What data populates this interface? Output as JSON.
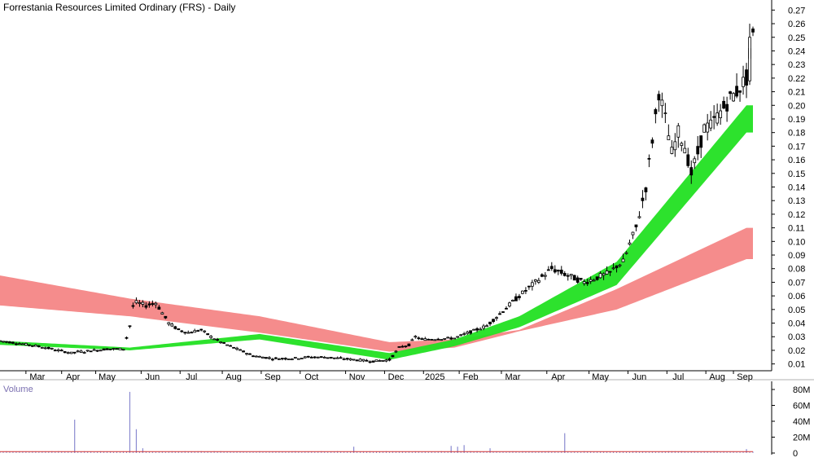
{
  "chart_data": [
    {
      "type": "candlestick",
      "title": "Forrestania Resources Limited Ordinary (FRS) - Daily",
      "x_axis": {
        "tick_labels": [
          "Mar",
          "Apr",
          "May",
          "Jun",
          "Jul",
          "Aug",
          "Sep",
          "Oct",
          "Nov",
          "Dec",
          "2025",
          "Feb",
          "Mar",
          "Apr",
          "May",
          "Jun",
          "Jul",
          "Aug",
          "Sep"
        ]
      },
      "y_axis": {
        "position": "right",
        "tick_labels": [
          "0.27",
          "0.26",
          "0.25",
          "0.24",
          "0.23",
          "0.22",
          "0.21",
          "0.20",
          "0.19",
          "0.18",
          "0.17",
          "0.16",
          "0.15",
          "0.14",
          "0.13",
          "0.12",
          "0.11",
          "0.10",
          "0.09",
          "0.08",
          "0.07",
          "0.06",
          "0.05",
          "0.04",
          "0.03",
          "0.02",
          "0.01"
        ],
        "ylim": [
          0.005,
          0.275
        ]
      },
      "price_anchors": {
        "x": [
          0,
          6,
          12,
          18,
          22,
          24,
          26,
          28,
          30,
          33,
          38,
          40,
          40.1,
          42,
          45,
          48,
          52,
          55,
          58,
          62,
          65,
          68,
          72,
          78,
          84,
          90,
          95,
          100,
          105,
          110,
          115,
          120,
          123,
          126,
          128,
          130,
          140,
          150,
          160,
          170,
          180,
          188,
          190,
          192,
          194,
          196,
          197,
          199,
          201,
          203,
          205,
          207,
          209,
          211,
          213,
          215,
          217,
          219,
          222,
          225,
          227,
          230,
          232
        ],
        "y": [
          0.027,
          0.025,
          0.023,
          0.02,
          0.018,
          0.019,
          0.019,
          0.02,
          0.02,
          0.021,
          0.021,
          0.038,
          0.05,
          0.055,
          0.053,
          0.055,
          0.04,
          0.035,
          0.033,
          0.035,
          0.03,
          0.026,
          0.022,
          0.016,
          0.014,
          0.014,
          0.015,
          0.015,
          0.014,
          0.013,
          0.012,
          0.013,
          0.022,
          0.024,
          0.03,
          0.028,
          0.029,
          0.038,
          0.06,
          0.08,
          0.07,
          0.077,
          0.082,
          0.085,
          0.098,
          0.11,
          0.12,
          0.14,
          0.175,
          0.21,
          0.19,
          0.165,
          0.18,
          0.17,
          0.15,
          0.165,
          0.183,
          0.185,
          0.195,
          0.205,
          0.21,
          0.22,
          0.25
        ]
      },
      "bands": [
        {
          "name": "long-term moving average band",
          "color": "#f47f7f",
          "x": [
            0,
            40,
            80,
            120,
            140,
            160,
            190,
            230
          ],
          "upper": [
            0.075,
            0.058,
            0.045,
            0.026,
            0.028,
            0.035,
            0.065,
            0.11
          ],
          "lower": [
            0.053,
            0.045,
            0.033,
            0.019,
            0.022,
            0.034,
            0.05,
            0.087
          ]
        },
        {
          "name": "short-term moving average band",
          "color": "#22e022",
          "x": [
            0,
            40,
            80,
            120,
            140,
            160,
            190,
            230
          ],
          "upper": [
            0.027,
            0.022,
            0.032,
            0.018,
            0.028,
            0.045,
            0.085,
            0.2
          ],
          "lower": [
            0.024,
            0.02,
            0.028,
            0.013,
            0.023,
            0.037,
            0.068,
            0.18
          ]
        }
      ],
      "volume": {
        "label": "Volume",
        "tick_labels": [
          "80M",
          "60M",
          "40M",
          "20M",
          "0"
        ],
        "ylim": [
          0,
          80
        ],
        "spikes": [
          {
            "x": 23,
            "value": 42
          },
          {
            "x": 40,
            "value": 77
          },
          {
            "x": 42,
            "value": 30
          },
          {
            "x": 44,
            "value": 6
          },
          {
            "x": 109,
            "value": 8
          },
          {
            "x": 139,
            "value": 9
          },
          {
            "x": 141,
            "value": 8
          },
          {
            "x": 143,
            "value": 10
          },
          {
            "x": 151,
            "value": 6
          },
          {
            "x": 174,
            "value": 25
          },
          {
            "x": 230,
            "value": 5
          }
        ]
      }
    }
  ]
}
